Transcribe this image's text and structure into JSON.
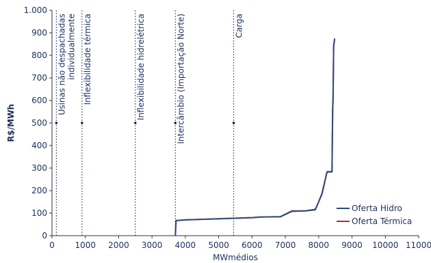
{
  "chart_data": {
    "type": "line",
    "title": "",
    "xlabel": "MWmédios",
    "ylabel": "R$/MWh",
    "xlim": [
      0,
      11000
    ],
    "ylim": [
      0,
      1000
    ],
    "x_ticks": [
      0,
      1000,
      2000,
      3000,
      4000,
      5000,
      6000,
      7000,
      8000,
      9000,
      10000,
      11000
    ],
    "x_tick_labels": [
      "0",
      "1000",
      "2000",
      "3000",
      "4000",
      "5000",
      "6000",
      "7000",
      "8000",
      "9000",
      "10000",
      "11000"
    ],
    "y_ticks": [
      0,
      100,
      200,
      300,
      400,
      500,
      600,
      700,
      800,
      900,
      1000
    ],
    "y_tick_labels": [
      "0",
      "100",
      "200",
      "300",
      "400",
      "500",
      "600",
      "700",
      "800",
      "900",
      "1.000"
    ],
    "grid": false,
    "legend_position": "bottom-right",
    "vertical_markers": [
      {
        "x": 130,
        "label_lines": [
          "Usinas não despachadas",
          "individualmente"
        ]
      },
      {
        "x": 900,
        "label_lines": [
          "Inflexibilidade térmica"
        ]
      },
      {
        "x": 2500,
        "label_lines": [
          "Inflexibilidade hidrelétrica"
        ]
      },
      {
        "x": 3700,
        "label_lines": [
          "Intercâmbio (Importação Norte)"
        ]
      },
      {
        "x": 5450,
        "label_lines": [
          "Carga"
        ]
      }
    ],
    "series": [
      {
        "name": "Oferta Hidro",
        "color": "#2e4a7d",
        "points": [
          [
            3700,
            0
          ],
          [
            3720,
            67
          ],
          [
            4000,
            70
          ],
          [
            5000,
            75
          ],
          [
            6000,
            80
          ],
          [
            6300,
            83
          ],
          [
            6850,
            84
          ],
          [
            7200,
            108
          ],
          [
            7600,
            110
          ],
          [
            7900,
            115
          ],
          [
            8000,
            150
          ],
          [
            8100,
            185
          ],
          [
            8250,
            282
          ],
          [
            8400,
            283
          ],
          [
            8410,
            440
          ],
          [
            8420,
            560
          ],
          [
            8430,
            600
          ],
          [
            8450,
            840
          ],
          [
            8480,
            873
          ]
        ]
      },
      {
        "name": "Oferta Térmica",
        "color": "#9e2a4e",
        "points": [
          [
            3700,
            0
          ],
          [
            3720,
            67
          ],
          [
            4000,
            70
          ],
          [
            5000,
            75
          ],
          [
            6000,
            80
          ],
          [
            6300,
            83
          ],
          [
            6850,
            84
          ],
          [
            7200,
            110
          ],
          [
            7600,
            110
          ],
          [
            7900,
            117
          ],
          [
            8000,
            150
          ],
          [
            8100,
            188
          ],
          [
            8250,
            284
          ],
          [
            8400,
            284
          ],
          [
            8410,
            440
          ],
          [
            8420,
            562
          ],
          [
            8430,
            603
          ],
          [
            8450,
            843
          ],
          [
            8480,
            875
          ]
        ]
      }
    ]
  }
}
